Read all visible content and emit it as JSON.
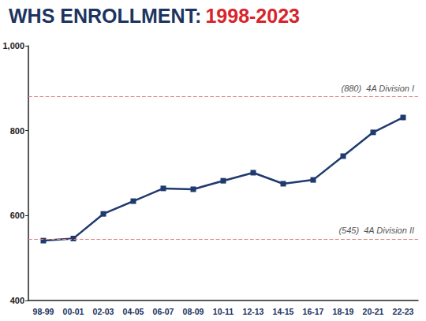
{
  "chart_data": {
    "type": "line",
    "title": "WHS ENROLLMENT: 1998-2023",
    "categories": [
      "98-99",
      "00-01",
      "02-03",
      "04-05",
      "06-07",
      "08-09",
      "10-11",
      "12-13",
      "14-15",
      "16-17",
      "18-19",
      "20-21",
      "22-23"
    ],
    "values": [
      541,
      546,
      604,
      634,
      664,
      662,
      682,
      701,
      675,
      684,
      740,
      796,
      831
    ],
    "color": "#1f3a6e",
    "marker": "square",
    "ylim": [
      400,
      1000
    ],
    "yticks": [
      400,
      600,
      800,
      1000
    ],
    "grid": false,
    "annotations": [
      {
        "value": 880,
        "label": "(880)  4A Division I"
      },
      {
        "value": 545,
        "label": "(545)  4A Division II"
      }
    ]
  }
}
